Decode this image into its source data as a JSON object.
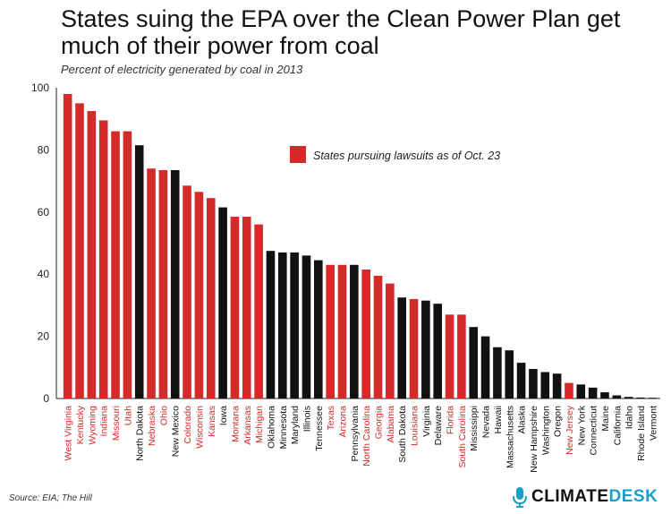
{
  "chart_data": {
    "type": "bar",
    "title": "States suing the EPA over the Clean Power Plan get much of their power from coal",
    "subtitle": "Percent of electricity generated by coal in 2013",
    "xlabel": "",
    "ylabel": "",
    "ylim": [
      0,
      100
    ],
    "yticks": [
      0,
      20,
      40,
      60,
      80,
      100
    ],
    "grid": false,
    "legend": {
      "label": "States pursuing lawsuits as of Oct. 23",
      "color": "#d42a2a",
      "placement": "middle-right"
    },
    "colors": {
      "lawsuit": "#d42a2a",
      "other": "#111111"
    },
    "categories": [
      "West Virginia",
      "Kentucky",
      "Wyoming",
      "Indiana",
      "Missouri",
      "Utah",
      "North Dakota",
      "Nebraska",
      "Ohio",
      "New Mexico",
      "Colorado",
      "Wisconsin",
      "Kansas",
      "Iowa",
      "Montana",
      "Arkansas",
      "Michigan",
      "Oklahoma",
      "Minnesota",
      "Maryland",
      "Illinois",
      "Tennessee",
      "Texas",
      "Arizona",
      "Pennsylvania",
      "North Carolina",
      "Georgia",
      "Alabama",
      "South Dakota",
      "Louisiana",
      "Virginia",
      "Delaware",
      "Florida",
      "South Carolina",
      "Mississippi",
      "Nevada",
      "Hawaii",
      "Massachusetts",
      "Alaska",
      "New Hampshire",
      "Washington",
      "Oregon",
      "New Jersey",
      "New York",
      "Connecticut",
      "Maine",
      "California",
      "Idaho",
      "Rhode Island",
      "Vermont"
    ],
    "values": [
      98,
      95,
      92.5,
      89.5,
      86,
      86,
      81.5,
      74,
      73.5,
      73.5,
      68.5,
      66.5,
      64.5,
      61.5,
      58.5,
      58.5,
      56,
      47.5,
      47,
      47,
      46,
      44.5,
      43,
      43,
      43,
      41.5,
      39.5,
      37,
      32.5,
      32,
      31.5,
      30.5,
      27,
      27,
      23,
      20,
      16.5,
      15.5,
      11.5,
      9.5,
      8.5,
      8,
      5,
      4.5,
      3.5,
      2,
      1,
      0.5,
      0.3,
      0.2
    ],
    "lawsuit": [
      true,
      true,
      true,
      true,
      true,
      true,
      false,
      true,
      true,
      false,
      true,
      true,
      true,
      false,
      true,
      true,
      true,
      false,
      false,
      false,
      false,
      false,
      true,
      true,
      false,
      true,
      true,
      true,
      false,
      true,
      false,
      false,
      true,
      true,
      false,
      false,
      false,
      false,
      false,
      false,
      false,
      false,
      true,
      false,
      false,
      false,
      false,
      false,
      false,
      false
    ]
  },
  "footer": {
    "source": "Source: EIA; The Hill",
    "brand_main": "CLIMATE",
    "brand_accent": "DESK",
    "brand_icon": "microphone-icon"
  }
}
